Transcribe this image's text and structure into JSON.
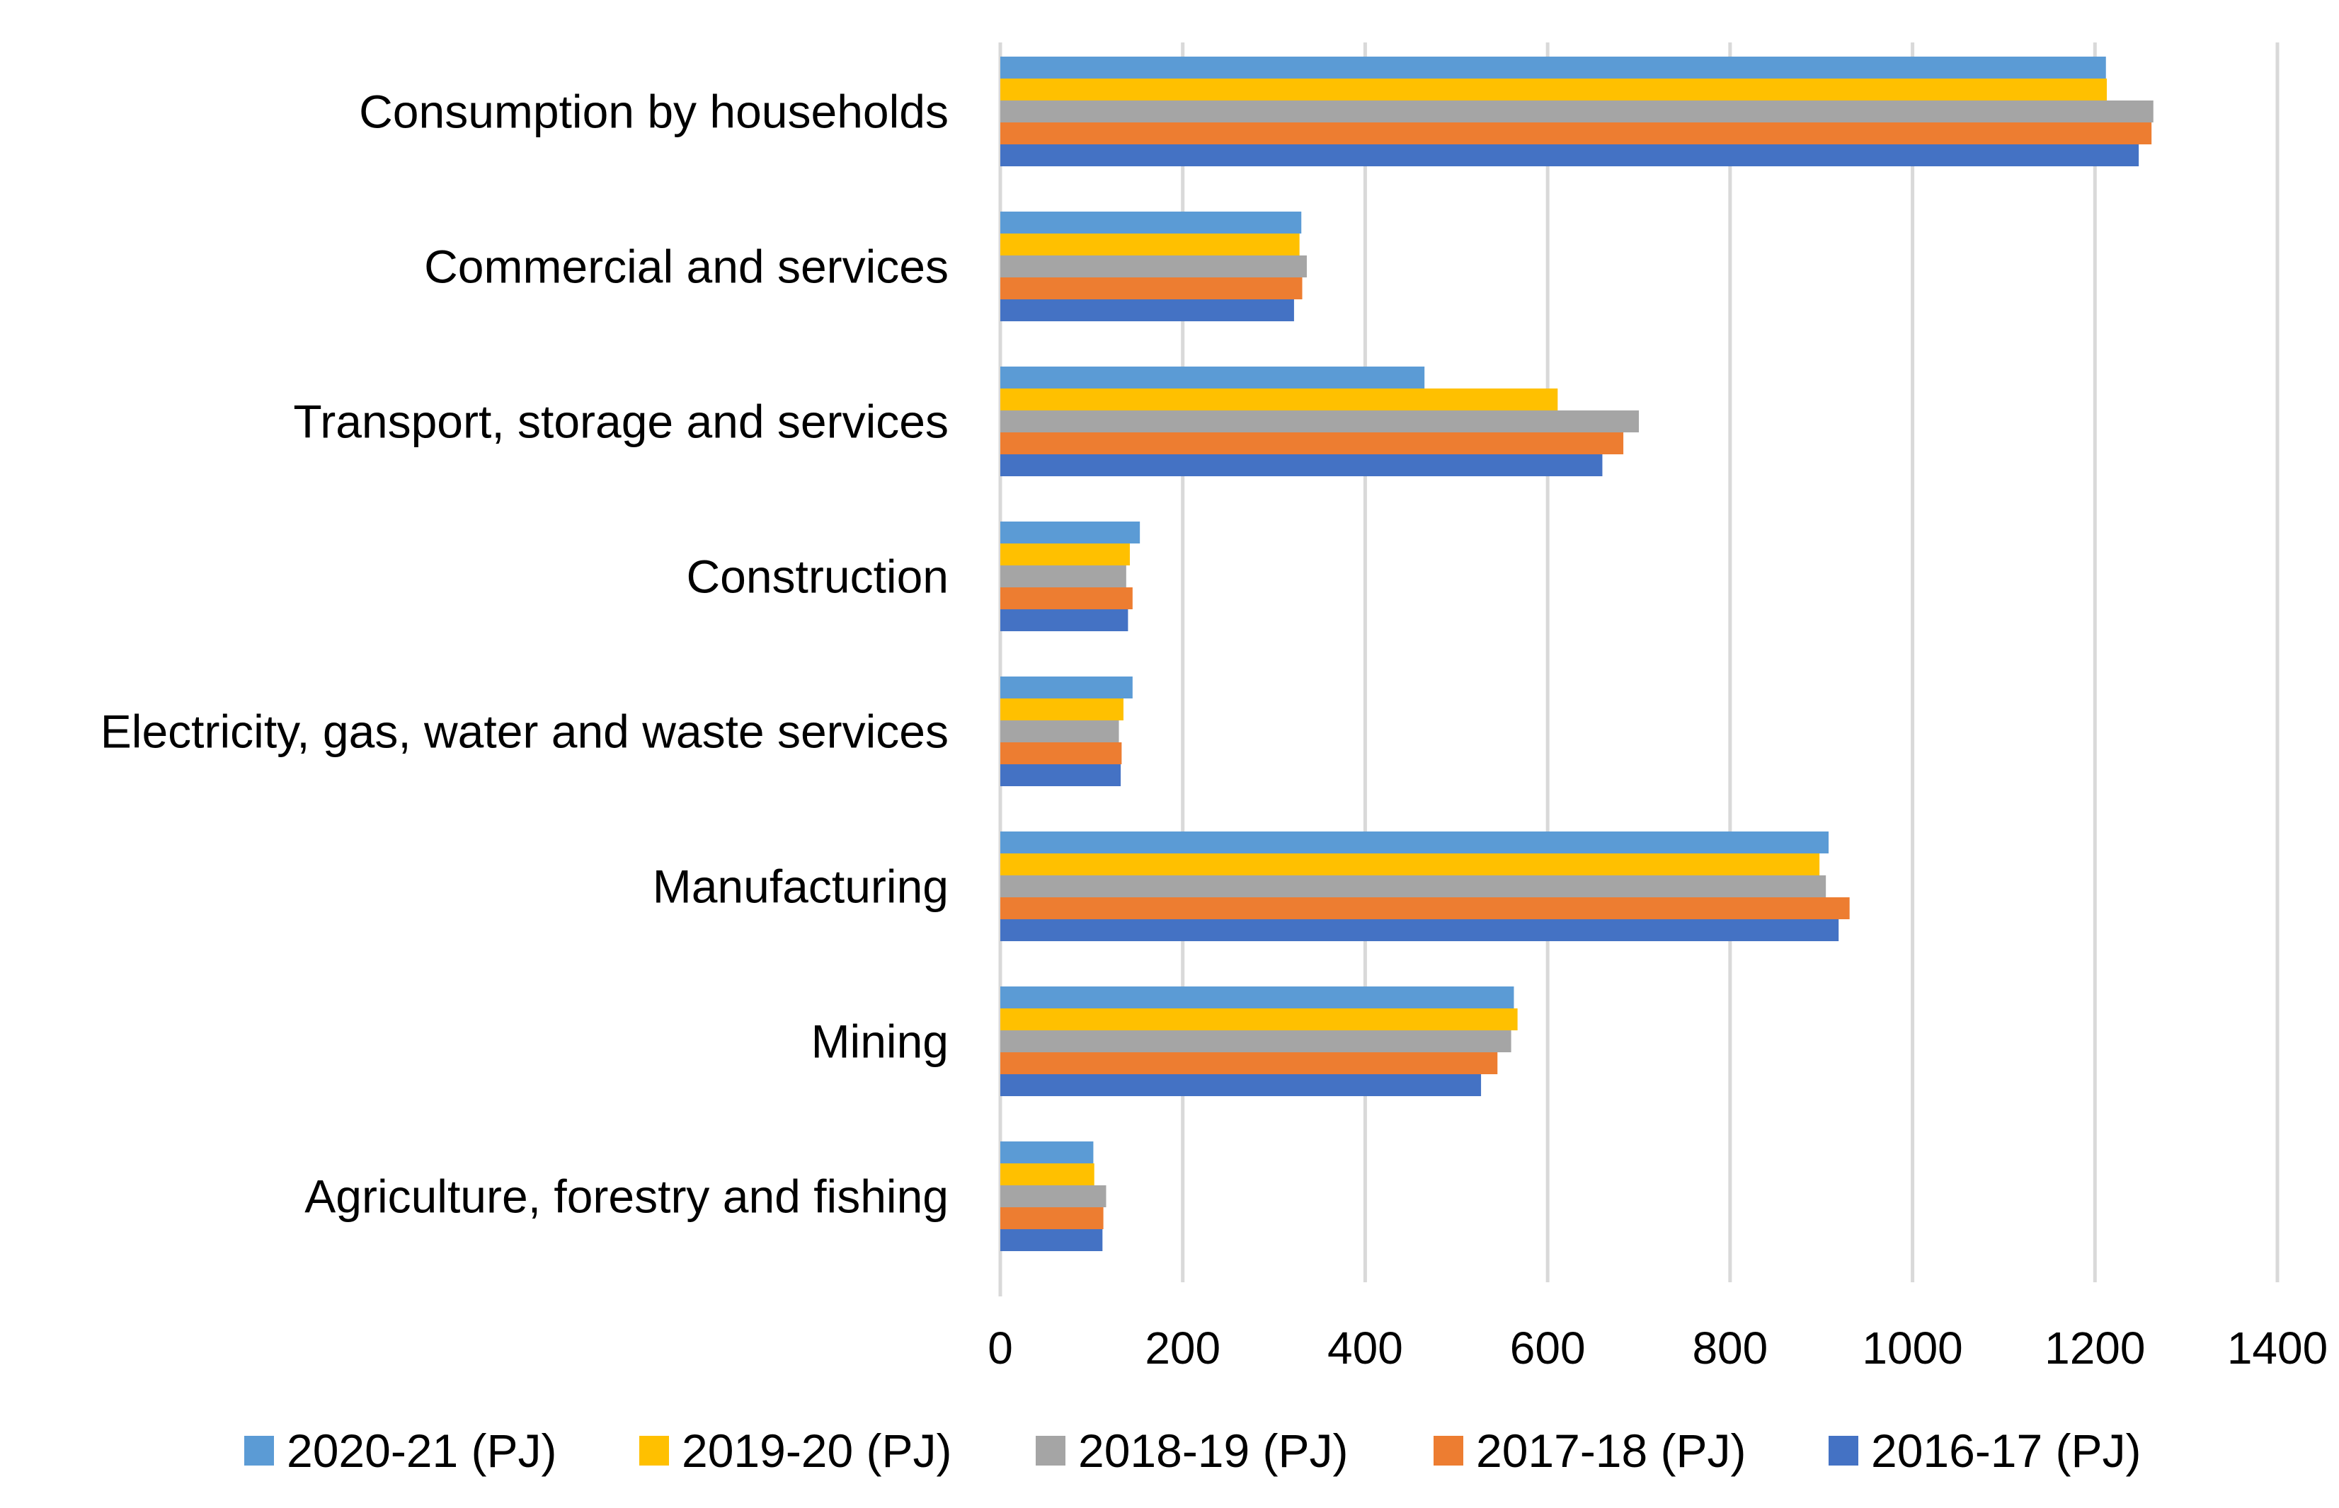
{
  "chart_data": {
    "type": "bar",
    "orientation": "horizontal",
    "title": "",
    "xlabel": "",
    "ylabel": "",
    "xlim": [
      0,
      1400
    ],
    "ticks": [
      0,
      200,
      400,
      600,
      800,
      1000,
      1200,
      1400
    ],
    "tick_labels": [
      "0",
      "200",
      "400",
      "600",
      "800",
      "1000",
      "1200",
      "1400"
    ],
    "grid": true,
    "legend_position": "bottom",
    "categories": [
      "Consumption by households",
      "Commercial and services",
      "Transport, storage and services",
      "Construction",
      "Electricity, gas, water and waste services",
      "Manufacturing",
      "Mining",
      "Agriculture, forestry and fishing"
    ],
    "series": [
      {
        "name": "2020-21 (PJ)",
        "color": "#5b9bd5",
        "values": [
          1212,
          330,
          465,
          153,
          145,
          908,
          563,
          102
        ]
      },
      {
        "name": "2019-20 (PJ)",
        "color": "#ffc000",
        "values": [
          1213,
          328,
          611,
          142,
          135,
          898,
          567,
          103
        ]
      },
      {
        "name": "2018-19 (PJ)",
        "color": "#a5a5a5",
        "values": [
          1264,
          336,
          700,
          138,
          130,
          905,
          560,
          116
        ]
      },
      {
        "name": "2017-18 (PJ)",
        "color": "#ed7d31",
        "values": [
          1262,
          331,
          683,
          145,
          133,
          931,
          545,
          113
        ]
      },
      {
        "name": "2016-17 (PJ)",
        "color": "#4472c4",
        "values": [
          1248,
          322,
          660,
          140,
          132,
          919,
          527,
          112
        ]
      }
    ]
  }
}
